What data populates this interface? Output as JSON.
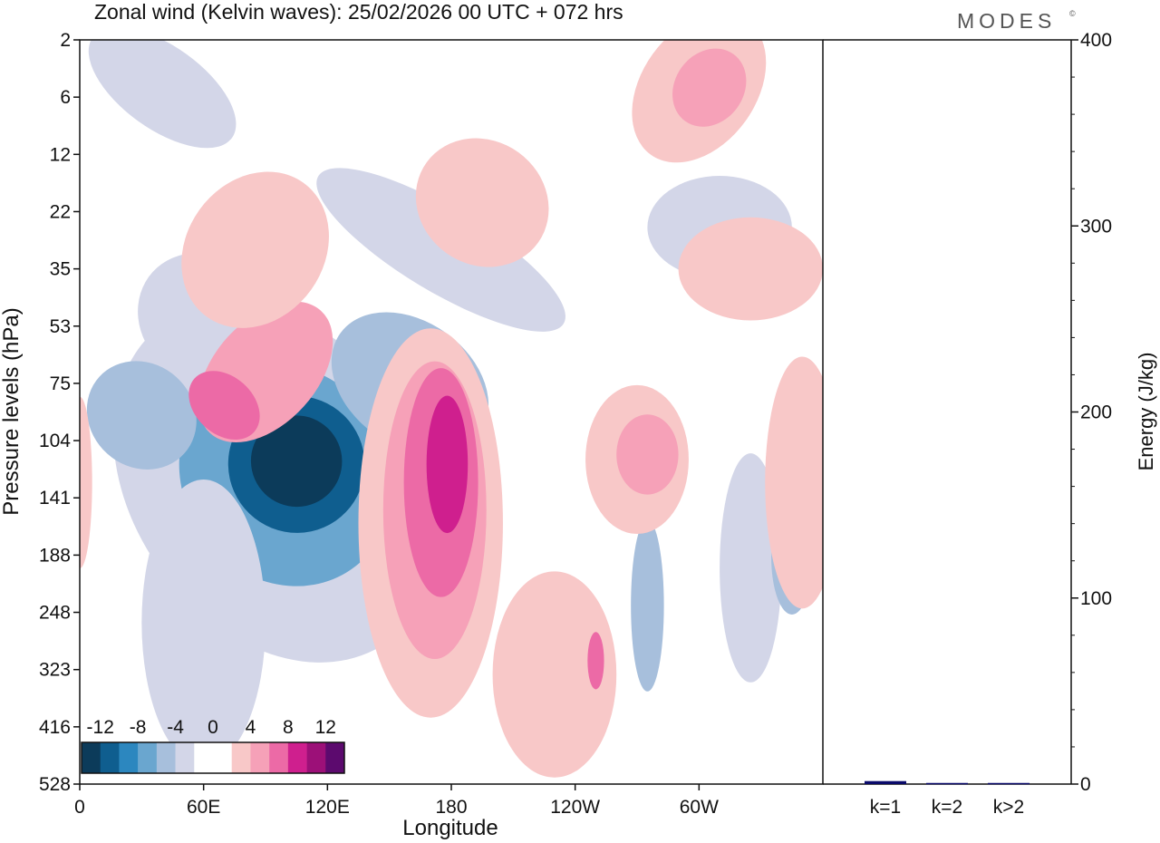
{
  "chart_data": [
    {
      "type": "heatmap",
      "title": "Zonal wind (Kelvin waves):  25/02/2026  00 UTC  + 072 hrs",
      "xlabel": "Longitude",
      "ylabel": "Pressure levels (hPa)",
      "x_ticks": [
        {
          "label": "0",
          "lon": 0
        },
        {
          "label": "60E",
          "lon": 60
        },
        {
          "label": "120E",
          "lon": 120
        },
        {
          "label": "180",
          "lon": 180
        },
        {
          "label": "120W",
          "lon": 240
        },
        {
          "label": "60W",
          "lon": 300
        }
      ],
      "xlim": [
        0,
        360
      ],
      "y_ticks": [
        "2",
        "6",
        "12",
        "22",
        "35",
        "53",
        "75",
        "104",
        "141",
        "188",
        "248",
        "323",
        "416",
        "528"
      ],
      "colorbar": {
        "labels": [
          "-12",
          "-8",
          "-4",
          "0",
          "4",
          "8",
          "12"
        ],
        "colors": [
          "#0c3b5a",
          "#0f5e8f",
          "#2c87bf",
          "#6aa6cf",
          "#a7bfdc",
          "#d3d6e8",
          "#ffffff",
          "#ffffff",
          "#f8c8c8",
          "#f6a1b8",
          "#ec6aa6",
          "#cf1f8e",
          "#9c1078",
          "#5c0a6e"
        ]
      },
      "regions": [
        {
          "sign": "neg",
          "level": 1,
          "lon": 95,
          "p": 130,
          "dlon": 70,
          "dlev": 3.4,
          "tilt": -0.025
        },
        {
          "sign": "neg",
          "level": 3,
          "lon": 100,
          "p": 125,
          "dlon": 50,
          "dlev": 2.0,
          "tilt": -0.025
        },
        {
          "sign": "neg",
          "level": 5,
          "lon": 105,
          "p": 118,
          "dlon": 33,
          "dlev": 1.2,
          "tilt": -0.025
        },
        {
          "sign": "neg",
          "level": 6,
          "lon": 105,
          "p": 116,
          "dlon": 22,
          "dlev": 0.8,
          "tilt": -0.025
        },
        {
          "sign": "neg",
          "level": 1,
          "lon": 60,
          "p": 260,
          "dlon": 30,
          "dlev": 2.5,
          "tilt": 0
        },
        {
          "sign": "neg",
          "level": 2,
          "lon": 160,
          "p": 75,
          "dlon": 30,
          "dlev": 1.5,
          "tilt": -0.05
        },
        {
          "sign": "neg",
          "level": 2,
          "lon": 30,
          "p": 90,
          "dlon": 25,
          "dlev": 1.0,
          "tilt": -0.04
        },
        {
          "sign": "neg",
          "level": 1,
          "lon": 175,
          "p": 30,
          "dlon": 20,
          "dlev": 2.5,
          "tilt": -0.06
        },
        {
          "sign": "neg",
          "level": 1,
          "lon": 60,
          "p": 50,
          "dlon": 30,
          "dlev": 1.2,
          "tilt": -0.04
        },
        {
          "sign": "neg",
          "level": 1,
          "lon": 325,
          "p": 200,
          "dlon": 15,
          "dlev": 2.0,
          "tilt": 0
        },
        {
          "sign": "neg",
          "level": 2,
          "lon": 345,
          "p": 190,
          "dlon": 10,
          "dlev": 1.0,
          "tilt": 0
        },
        {
          "sign": "neg",
          "level": 2,
          "lon": 275,
          "p": 240,
          "dlon": 8,
          "dlev": 1.5,
          "tilt": 0
        },
        {
          "sign": "neg",
          "level": 1,
          "lon": 310,
          "p": 25,
          "dlon": 35,
          "dlev": 0.9,
          "tilt": 0
        },
        {
          "sign": "neg",
          "level": 1,
          "lon": 40,
          "p": 5,
          "dlon": 20,
          "dlev": 1.5,
          "tilt": -0.05
        },
        {
          "sign": "pos",
          "level": 1,
          "lon": 170,
          "p": 160,
          "dlon": 35,
          "dlev": 3.4,
          "tilt": 0
        },
        {
          "sign": "pos",
          "level": 2,
          "lon": 172,
          "p": 150,
          "dlon": 25,
          "dlev": 2.6,
          "tilt": 0
        },
        {
          "sign": "pos",
          "level": 3,
          "lon": 175,
          "p": 130,
          "dlon": 18,
          "dlev": 2.0,
          "tilt": 0
        },
        {
          "sign": "pos",
          "level": 4,
          "lon": 178,
          "p": 118,
          "dlon": 10,
          "dlev": 1.2,
          "tilt": 0
        },
        {
          "sign": "pos",
          "level": 1,
          "lon": 230,
          "p": 330,
          "dlon": 30,
          "dlev": 1.8,
          "tilt": 0
        },
        {
          "sign": "pos",
          "level": 3,
          "lon": 250,
          "p": 310,
          "dlon": 4,
          "dlev": 0.5,
          "tilt": 0
        },
        {
          "sign": "pos",
          "level": 2,
          "lon": 90,
          "p": 70,
          "dlon": 40,
          "dlev": 0.9,
          "tilt": -0.04
        },
        {
          "sign": "pos",
          "level": 3,
          "lon": 70,
          "p": 85,
          "dlon": 14,
          "dlev": 0.7,
          "tilt": -0.04
        },
        {
          "sign": "pos",
          "level": 1,
          "lon": 85,
          "p": 30,
          "dlon": 40,
          "dlev": 1.2,
          "tilt": -0.05
        },
        {
          "sign": "pos",
          "level": 1,
          "lon": 270,
          "p": 115,
          "dlon": 25,
          "dlev": 1.3,
          "tilt": 0
        },
        {
          "sign": "pos",
          "level": 2,
          "lon": 275,
          "p": 112,
          "dlon": 15,
          "dlev": 0.7,
          "tilt": 0
        },
        {
          "sign": "pos",
          "level": 1,
          "lon": 350,
          "p": 130,
          "dlon": 18,
          "dlev": 2.2,
          "tilt": 0
        },
        {
          "sign": "pos",
          "level": 1,
          "lon": 325,
          "p": 35,
          "dlon": 35,
          "dlev": 0.9,
          "tilt": 0
        },
        {
          "sign": "pos",
          "level": 1,
          "lon": 300,
          "p": 5,
          "dlon": 40,
          "dlev": 1.0,
          "tilt": -0.05
        },
        {
          "sign": "pos",
          "level": 2,
          "lon": 305,
          "p": 5,
          "dlon": 20,
          "dlev": 0.6,
          "tilt": -0.05
        },
        {
          "sign": "pos",
          "level": 1,
          "lon": 195,
          "p": 20,
          "dlon": 30,
          "dlev": 1.2,
          "tilt": -0.05
        },
        {
          "sign": "pos",
          "level": 1,
          "lon": 0,
          "p": 130,
          "dlon": 6,
          "dlev": 1.5,
          "tilt": 0
        }
      ]
    },
    {
      "type": "bar",
      "categories": [
        "k=1",
        "k=2",
        "k>2"
      ],
      "values": [
        1.6,
        0.6,
        0.6
      ],
      "ylabel": "Energy (J/kg)",
      "ylim": [
        0,
        400
      ],
      "y_ticks": [
        "0",
        "100",
        "200",
        "300",
        "400"
      ],
      "bar_color": "#0a0a6a"
    }
  ],
  "branding": {
    "logo_text": "MODES",
    "logo_mark": "©"
  }
}
